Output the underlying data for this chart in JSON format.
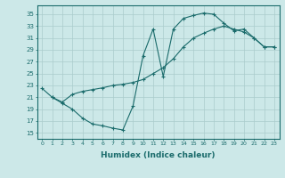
{
  "xlabel": "Humidex (Indice chaleur)",
  "background_color": "#cce8e8",
  "line_color": "#1a6b6b",
  "grid_color": "#aacccc",
  "xlim": [
    -0.5,
    23.5
  ],
  "ylim": [
    14,
    36.5
  ],
  "xticks": [
    0,
    1,
    2,
    3,
    4,
    5,
    6,
    7,
    8,
    9,
    10,
    11,
    12,
    13,
    14,
    15,
    16,
    17,
    18,
    19,
    20,
    21,
    22,
    23
  ],
  "yticks": [
    15,
    17,
    19,
    21,
    23,
    25,
    27,
    29,
    31,
    33,
    35
  ],
  "series1": [
    [
      0,
      22.5
    ],
    [
      1,
      21.0
    ],
    [
      2,
      20.0
    ],
    [
      3,
      19.0
    ],
    [
      4,
      17.5
    ],
    [
      5,
      16.5
    ],
    [
      6,
      16.2
    ],
    [
      7,
      15.8
    ],
    [
      8,
      15.5
    ],
    [
      9,
      19.5
    ],
    [
      10,
      28.0
    ],
    [
      11,
      32.5
    ],
    [
      12,
      24.5
    ],
    [
      13,
      32.5
    ],
    [
      14,
      34.3
    ],
    [
      15,
      34.8
    ],
    [
      16,
      35.2
    ],
    [
      17,
      35.0
    ],
    [
      18,
      33.5
    ],
    [
      19,
      32.2
    ],
    [
      20,
      32.5
    ],
    [
      21,
      31.0
    ],
    [
      22,
      29.5
    ],
    [
      23,
      29.5
    ]
  ],
  "series2": [
    [
      1,
      21.0
    ],
    [
      2,
      20.2
    ],
    [
      3,
      21.5
    ],
    [
      4,
      22.0
    ],
    [
      5,
      22.3
    ],
    [
      6,
      22.6
    ],
    [
      7,
      23.0
    ],
    [
      8,
      23.2
    ],
    [
      9,
      23.5
    ],
    [
      10,
      24.0
    ],
    [
      11,
      25.0
    ],
    [
      12,
      26.0
    ],
    [
      13,
      27.5
    ],
    [
      14,
      29.5
    ],
    [
      15,
      31.0
    ],
    [
      16,
      31.8
    ],
    [
      17,
      32.5
    ],
    [
      18,
      33.0
    ],
    [
      19,
      32.5
    ],
    [
      20,
      32.0
    ],
    [
      21,
      31.0
    ],
    [
      22,
      29.5
    ],
    [
      23,
      29.5
    ]
  ]
}
